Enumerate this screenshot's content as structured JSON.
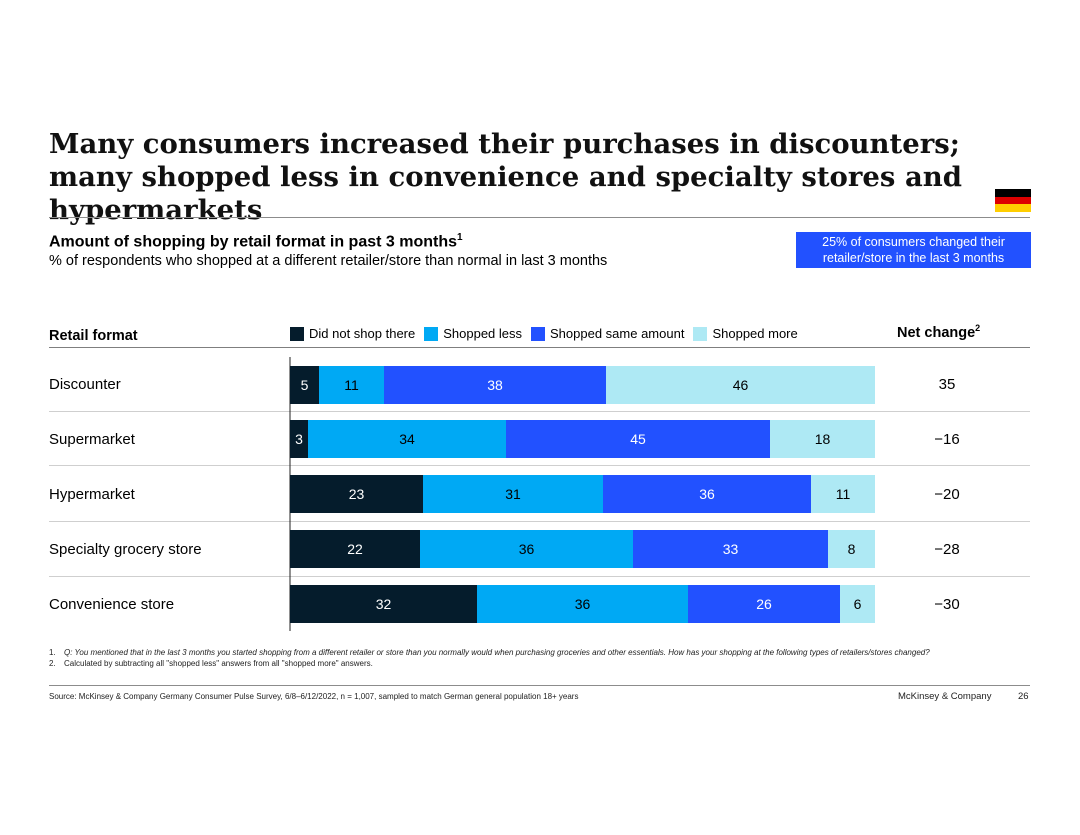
{
  "title": "Many consumers increased their purchases in discounters; many shopped less in convenience and specialty stores and hypermarkets",
  "flag": {
    "colors": [
      "#000000",
      "#dd0000",
      "#ffce00"
    ]
  },
  "subtitle": {
    "main": "Amount of shopping by retail format in past 3 months",
    "sup": "1"
  },
  "subtitle2": "% of respondents who shopped at a different retailer/store than normal in last 3 months",
  "callout": {
    "line1": "25% of consumers changed their",
    "line2": "retailer/store in the last 3 months"
  },
  "headers": {
    "format": "Retail format",
    "net": "Net change",
    "net_sup": "2"
  },
  "colors": {
    "did_not_shop": "#051c2c",
    "shopped_less": "#00a9f4",
    "shopped_same": "#2251ff",
    "shopped_more": "#aee9f4",
    "callout_bg": "#2251ff"
  },
  "chart_data": {
    "type": "bar",
    "orientation": "horizontal",
    "stacked": true,
    "title": "Amount of shopping by retail format in past 3 months",
    "xlabel": "% of respondents",
    "xlim": [
      0,
      100
    ],
    "legend_position": "top",
    "categories": [
      "Discounter",
      "Supermarket",
      "Hypermarket",
      "Specialty grocery store",
      "Convenience store"
    ],
    "series": [
      {
        "name": "Did not shop there",
        "color": "#051c2c",
        "label_color": "#ffffff",
        "values": [
          5,
          3,
          23,
          22,
          32
        ]
      },
      {
        "name": "Shopped less",
        "color": "#00a9f4",
        "label_color": "#000000",
        "values": [
          11,
          34,
          31,
          36,
          36
        ]
      },
      {
        "name": "Shopped same amount",
        "color": "#2251ff",
        "label_color": "#ffffff",
        "values": [
          38,
          45,
          36,
          33,
          26
        ]
      },
      {
        "name": "Shopped more",
        "color": "#aee9f4",
        "label_color": "#000000",
        "values": [
          46,
          18,
          11,
          8,
          6
        ]
      }
    ],
    "net_change": [
      "35",
      "−16",
      "−20",
      "−28",
      "−30"
    ]
  },
  "footnotes": [
    {
      "num": "1.",
      "text": "Q: You mentioned that in the last 3 months you started shopping from a different retailer or store than you normally would when purchasing groceries and other essentials. How has your shopping at the following types of retailers/stores changed?"
    },
    {
      "num": "2.",
      "text": "Calculated by subtracting all \"shopped less\" answers from all \"shopped more\" answers."
    }
  ],
  "source": "Source: McKinsey & Company Germany Consumer Pulse Survey, 6/8–6/12/2022, n = 1,007, sampled to match German general population 18+ years",
  "brand": "McKinsey & Company",
  "page_number": "26"
}
